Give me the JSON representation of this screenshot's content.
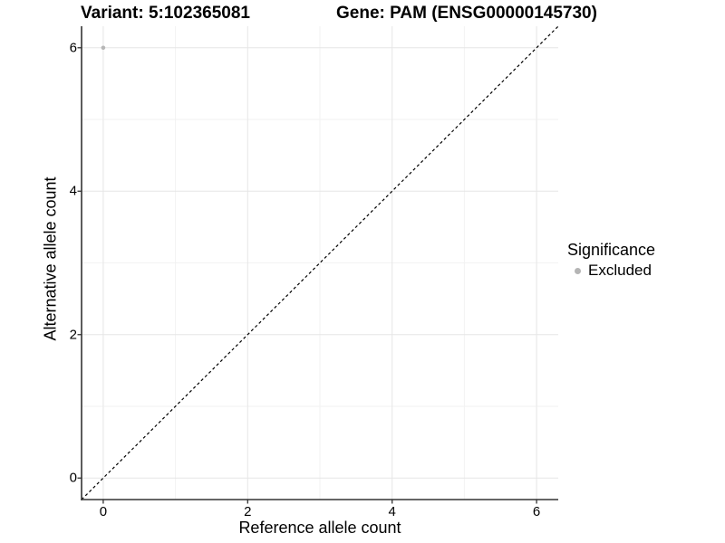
{
  "chart_data": {
    "type": "scatter",
    "title_left": "Variant: 5:102365081",
    "title_right": "Gene: PAM (ENSG00000145730)",
    "xlabel": "Reference allele count",
    "ylabel": "Alternative allele count",
    "xlim": [
      -0.3,
      6.3
    ],
    "ylim": [
      -0.3,
      6.3
    ],
    "x_ticks": [
      0,
      2,
      4,
      6
    ],
    "y_ticks": [
      0,
      2,
      4,
      6
    ],
    "x_minor_gridlines": [
      1,
      3,
      5
    ],
    "y_minor_gridlines": [
      1,
      3,
      5
    ],
    "grid": true,
    "points": [
      {
        "x": 0,
        "y": 6,
        "series": "Excluded"
      }
    ],
    "identity_line": {
      "style": "dashed",
      "slope": 1,
      "intercept": 0,
      "color": "#000000"
    },
    "legend": {
      "title": "Significance",
      "position": "right",
      "items": [
        {
          "label": "Excluded",
          "color": "#b5b5b5"
        }
      ]
    },
    "colors": {
      "point": "#b7b7b7",
      "grid_major": "#e6e6e6",
      "grid_minor": "#f2f2f2",
      "axis": "#333333",
      "text": "#000000",
      "background": "#ffffff"
    }
  }
}
